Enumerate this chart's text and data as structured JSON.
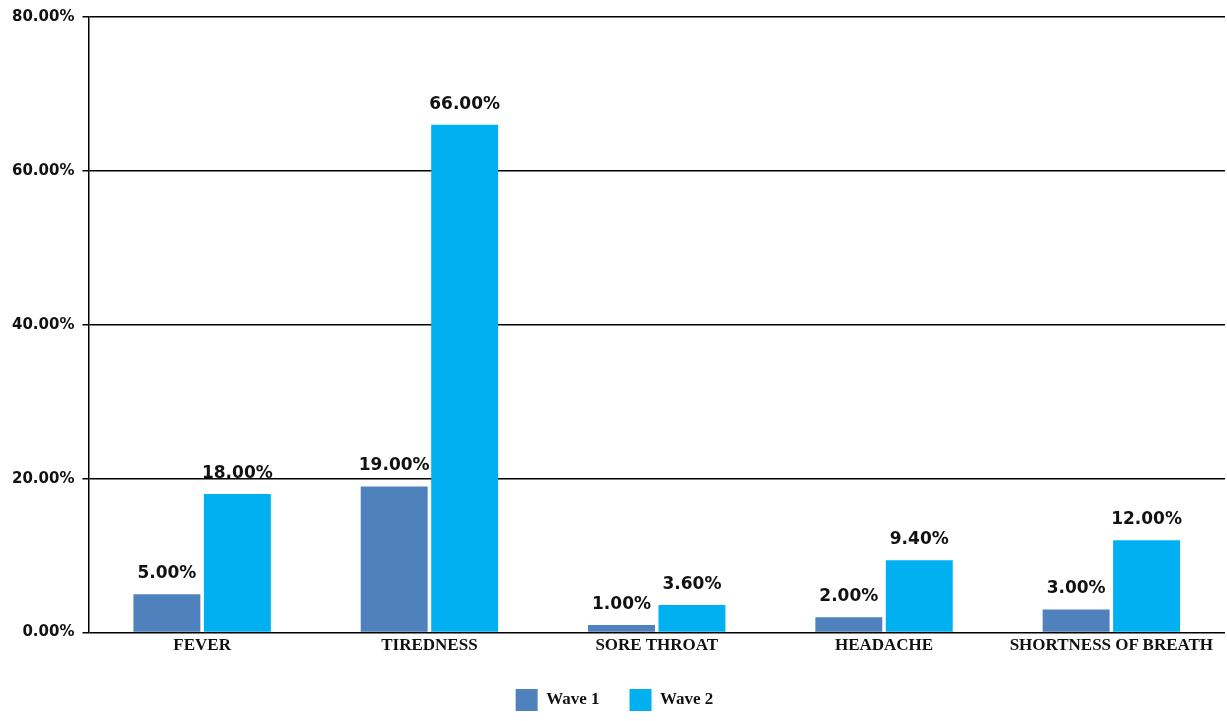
{
  "chart_data": {
    "type": "bar",
    "categories": [
      "FEVER",
      "TIREDNESS",
      "SORE THROAT",
      "HEADACHE",
      "SHORTNESS OF BREATH"
    ],
    "series": [
      {
        "name": "Wave 1",
        "color": "#4f81bd",
        "values": [
          5,
          19,
          1,
          2,
          3
        ],
        "value_labels": [
          "5.00%",
          "19.00%",
          "1.00%",
          "2.00%",
          "3.00%"
        ]
      },
      {
        "name": "Wave 2",
        "color": "#00b0f0",
        "values": [
          18,
          66,
          3.6,
          9.4,
          12
        ],
        "value_labels": [
          "18.00%",
          "66.00%",
          "3.60%",
          "9.40%",
          "12.00%"
        ]
      }
    ],
    "ylim": [
      0,
      80
    ],
    "yticks": [
      {
        "value": 0,
        "label": "0.00%"
      },
      {
        "value": 20,
        "label": "20.00%"
      },
      {
        "value": 40,
        "label": "40.00%"
      },
      {
        "value": 60,
        "label": "60.00%"
      },
      {
        "value": 80,
        "label": "80.00%"
      }
    ],
    "grid": "y",
    "legend": "bottom"
  }
}
